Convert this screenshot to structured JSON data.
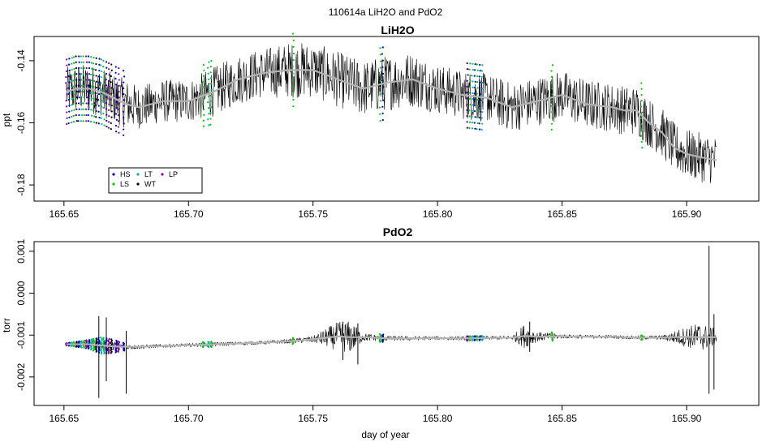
{
  "figure": {
    "title": "110614a   LiH2O and PdO2"
  },
  "chart_data": [
    {
      "type": "line",
      "title": "LiH2O",
      "xlabel": "",
      "ylabel": "ppt",
      "xlim": [
        165.638,
        165.929
      ],
      "ylim": [
        -0.1852,
        -0.1322
      ],
      "x_ticks": [
        165.65,
        165.7,
        165.75,
        165.8,
        165.85,
        165.9
      ],
      "x_tick_labels": [
        "165.65",
        "165.70",
        "165.75",
        "165.80",
        "165.85",
        "165.90"
      ],
      "y_ticks": [
        -0.14,
        -0.16,
        -0.18
      ],
      "y_tick_labels": [
        "-0.14",
        "-0.16",
        "-0.18"
      ],
      "grid": false,
      "series": [
        {
          "role": "raw",
          "color": "#000000",
          "x": [
            165.651,
            165.655,
            165.66,
            165.665,
            165.67,
            165.675,
            165.68,
            165.69,
            165.7,
            165.71,
            165.72,
            165.73,
            165.74,
            165.75,
            165.76,
            165.77,
            165.78,
            165.79,
            165.8,
            165.81,
            165.82,
            165.83,
            165.84,
            165.85,
            165.86,
            165.87,
            165.875,
            165.88,
            165.885,
            165.89,
            165.895,
            165.9,
            165.905,
            165.912
          ],
          "values": [
            -0.15,
            -0.149,
            -0.149,
            -0.15,
            -0.152,
            -0.154,
            -0.155,
            -0.153,
            -0.153,
            -0.15,
            -0.146,
            -0.144,
            -0.143,
            -0.143,
            -0.146,
            -0.149,
            -0.147,
            -0.146,
            -0.149,
            -0.151,
            -0.152,
            -0.155,
            -0.153,
            -0.151,
            -0.154,
            -0.155,
            -0.156,
            -0.156,
            -0.16,
            -0.163,
            -0.168,
            -0.17,
            -0.171,
            -0.172
          ],
          "spread": [
            0.008,
            0.008,
            0.008,
            0.008,
            0.008,
            0.008,
            0.007,
            0.007,
            0.007,
            0.008,
            0.008,
            0.008,
            0.009,
            0.009,
            0.009,
            0.009,
            0.009,
            0.009,
            0.008,
            0.008,
            0.008,
            0.008,
            0.008,
            0.008,
            0.008,
            0.008,
            0.008,
            0.008,
            0.008,
            0.008,
            0.008,
            0.008,
            0.008,
            0.008
          ]
        },
        {
          "role": "smoothed",
          "color": "#b3b3b3",
          "x": [
            165.651,
            165.655,
            165.66,
            165.665,
            165.67,
            165.675,
            165.68,
            165.69,
            165.7,
            165.71,
            165.72,
            165.73,
            165.74,
            165.75,
            165.76,
            165.77,
            165.78,
            165.79,
            165.8,
            165.81,
            165.82,
            165.83,
            165.84,
            165.85,
            165.86,
            165.87,
            165.875,
            165.88,
            165.885,
            165.89,
            165.895,
            165.9,
            165.905,
            165.912
          ],
          "values": [
            -0.15,
            -0.149,
            -0.149,
            -0.15,
            -0.152,
            -0.154,
            -0.155,
            -0.153,
            -0.153,
            -0.15,
            -0.146,
            -0.144,
            -0.143,
            -0.143,
            -0.146,
            -0.149,
            -0.147,
            -0.146,
            -0.149,
            -0.151,
            -0.152,
            -0.155,
            -0.153,
            -0.151,
            -0.154,
            -0.155,
            -0.156,
            -0.156,
            -0.16,
            -0.163,
            -0.168,
            -0.17,
            -0.171,
            -0.172
          ]
        }
      ],
      "markers": [
        {
          "code": "HS",
          "color": "#0000cd",
          "x": [
            165.652,
            165.656,
            165.66,
            165.664,
            165.667,
            165.671,
            165.674,
            165.778,
            165.812,
            165.815,
            165.817
          ]
        },
        {
          "code": "LS",
          "color": "#00cc00",
          "x": [
            165.654,
            165.658,
            165.662,
            165.666,
            165.706,
            165.709,
            165.742,
            165.777,
            165.813,
            165.816,
            165.846,
            165.882
          ]
        },
        {
          "code": "LT",
          "color": "#00b0b0",
          "x": [
            165.653,
            165.657,
            165.661,
            165.665,
            165.708,
            165.814,
            165.818
          ]
        },
        {
          "code": "WT",
          "color": "#000000",
          "x": [
            165.655,
            165.663,
            165.669
          ]
        },
        {
          "code": "LP",
          "color": "#8c008c",
          "x": [
            165.651,
            165.659,
            165.668,
            165.672,
            165.812
          ]
        }
      ],
      "legend": {
        "position": "bottom-left",
        "entries": [
          {
            "label": "HS",
            "color": "#0000cd"
          },
          {
            "label": "LT",
            "color": "#00b0b0"
          },
          {
            "label": "LP",
            "color": "#8c008c"
          },
          {
            "label": "LS",
            "color": "#00cc00"
          },
          {
            "label": "WT",
            "color": "#000000"
          }
        ]
      }
    },
    {
      "type": "line",
      "title": "PdO2",
      "xlabel": "day of year",
      "ylabel": "torr",
      "xlim": [
        165.638,
        165.929
      ],
      "ylim": [
        -0.00268,
        0.00123
      ],
      "x_ticks": [
        165.65,
        165.7,
        165.75,
        165.8,
        165.85,
        165.9
      ],
      "x_tick_labels": [
        "165.65",
        "165.70",
        "165.75",
        "165.80",
        "165.85",
        "165.90"
      ],
      "y_ticks": [
        0.001,
        0.0,
        -0.001,
        -0.002
      ],
      "y_tick_labels": [
        "0.001",
        "0.000",
        "-0.001",
        "-0.002"
      ],
      "grid": false,
      "series": [
        {
          "role": "raw",
          "color": "#000000",
          "x": [
            165.651,
            165.66,
            165.665,
            165.67,
            165.675,
            165.68,
            165.69,
            165.7,
            165.71,
            165.72,
            165.73,
            165.74,
            165.75,
            165.76,
            165.765,
            165.77,
            165.78,
            165.79,
            165.8,
            165.81,
            165.82,
            165.83,
            165.835,
            165.84,
            165.85,
            165.86,
            165.87,
            165.88,
            165.89,
            165.9,
            165.905,
            165.912
          ],
          "values": [
            -0.00122,
            -0.00122,
            -0.00125,
            -0.00127,
            -0.00128,
            -0.00128,
            -0.00126,
            -0.00124,
            -0.00122,
            -0.0012,
            -0.00118,
            -0.00115,
            -0.0011,
            -0.00103,
            -0.00105,
            -0.00105,
            -0.00108,
            -0.00108,
            -0.00107,
            -0.00108,
            -0.00107,
            -0.00106,
            -0.00102,
            -0.00104,
            -0.00103,
            -0.00104,
            -0.00104,
            -0.00106,
            -0.00106,
            -0.00104,
            -0.00105,
            -0.00105
          ],
          "spread": [
            2e-05,
            8e-05,
            0.00015,
            0.00012,
            6e-05,
            5e-05,
            4e-05,
            4e-05,
            5e-05,
            4e-05,
            4e-05,
            5e-05,
            8e-05,
            0.00035,
            0.0004,
            0.0001,
            6e-05,
            5e-05,
            4e-05,
            4e-05,
            4e-05,
            5e-05,
            0.0003,
            0.00012,
            5e-05,
            4e-05,
            4e-05,
            4e-05,
            5e-05,
            0.00025,
            0.00035,
            0.0002
          ]
        },
        {
          "role": "smoothed",
          "color": "#b3b3b3",
          "x": [
            165.651,
            165.66,
            165.665,
            165.67,
            165.675,
            165.68,
            165.69,
            165.7,
            165.71,
            165.72,
            165.73,
            165.74,
            165.75,
            165.76,
            165.765,
            165.77,
            165.78,
            165.79,
            165.8,
            165.81,
            165.82,
            165.83,
            165.835,
            165.84,
            165.85,
            165.86,
            165.87,
            165.88,
            165.89,
            165.9,
            165.905,
            165.912
          ],
          "values": [
            -0.00122,
            -0.00122,
            -0.00125,
            -0.00127,
            -0.00128,
            -0.00128,
            -0.00126,
            -0.00124,
            -0.00122,
            -0.0012,
            -0.00118,
            -0.00115,
            -0.0011,
            -0.00103,
            -0.00105,
            -0.00105,
            -0.00108,
            -0.00108,
            -0.00107,
            -0.00108,
            -0.00107,
            -0.00106,
            -0.00102,
            -0.00104,
            -0.00103,
            -0.00104,
            -0.00104,
            -0.00106,
            -0.00106,
            -0.00104,
            -0.00105,
            -0.00105
          ]
        }
      ],
      "spikes": [
        {
          "x": 165.664,
          "low": -0.0025,
          "high": -0.00055
        },
        {
          "x": 165.667,
          "low": -0.0021,
          "high": -0.00058
        },
        {
          "x": 165.675,
          "low": -0.0024,
          "high": -0.0009
        },
        {
          "x": 165.762,
          "low": -0.0016,
          "high": -0.00068
        },
        {
          "x": 165.768,
          "low": -0.0017,
          "high": -0.00072
        },
        {
          "x": 165.837,
          "low": -0.0014,
          "high": -0.00068
        },
        {
          "x": 165.909,
          "low": -0.0024,
          "high": 0.00113
        },
        {
          "x": 165.911,
          "low": -0.0023,
          "high": -0.0005
        }
      ],
      "markers": [
        {
          "code": "HS",
          "color": "#0000cd",
          "x": [
            165.652,
            165.656,
            165.66,
            165.664,
            165.667,
            165.671,
            165.674,
            165.778,
            165.812,
            165.815,
            165.817
          ]
        },
        {
          "code": "LS",
          "color": "#00cc00",
          "x": [
            165.654,
            165.658,
            165.662,
            165.666,
            165.706,
            165.709,
            165.742,
            165.777,
            165.813,
            165.816,
            165.846,
            165.882
          ]
        },
        {
          "code": "LT",
          "color": "#00b0b0",
          "x": [
            165.653,
            165.657,
            165.661,
            165.665,
            165.708,
            165.814,
            165.818
          ]
        },
        {
          "code": "WT",
          "color": "#000000",
          "x": [
            165.655,
            165.663,
            165.669
          ]
        },
        {
          "code": "LP",
          "color": "#8c008c",
          "x": [
            165.651,
            165.659,
            165.668,
            165.672,
            165.812
          ]
        }
      ]
    }
  ]
}
